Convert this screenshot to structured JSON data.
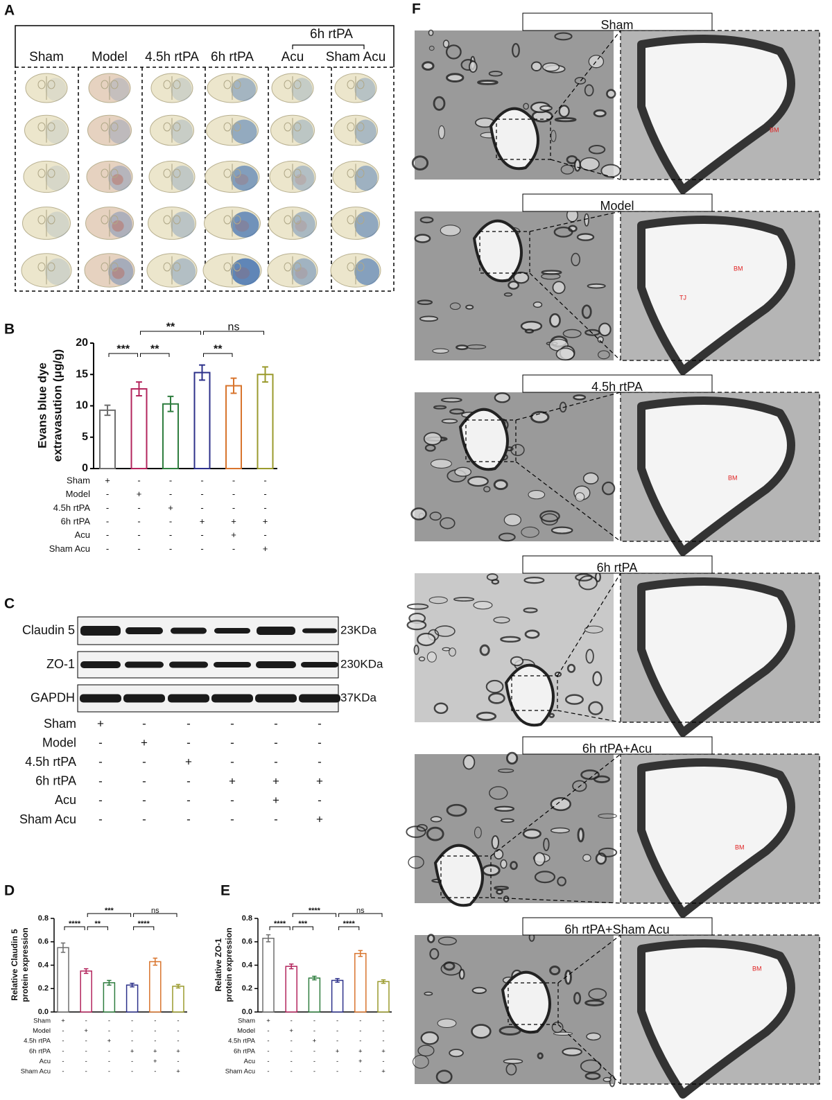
{
  "panel_letters": [
    "A",
    "B",
    "C",
    "D",
    "E",
    "F"
  ],
  "A": {
    "super_header": "6h rtPA",
    "headers": [
      "Sham",
      "Model",
      "4.5h rtPA",
      "6h rtPA",
      "Acu",
      "Sham Acu"
    ]
  },
  "chart_data": [
    {
      "type": "bar",
      "ylabel": [
        "Evans blue dye",
        "extravasution (μg/g)"
      ],
      "ylim": [
        0,
        20
      ],
      "yticks": [
        0,
        5,
        10,
        15,
        20
      ],
      "values": [
        9.3,
        12.7,
        10.3,
        15.3,
        13.2,
        15.0
      ],
      "errors": [
        0.8,
        1.1,
        1.2,
        1.2,
        1.2,
        1.2
      ],
      "colors": [
        "#6e6e6e",
        "#b3245c",
        "#2e7d3e",
        "#2c308a",
        "#d8742c",
        "#9a9a2c"
      ],
      "conditions": [
        {
          "label": "Sham",
          "signs": [
            "+",
            "-",
            "-",
            "-",
            "-",
            "-"
          ]
        },
        {
          "label": "Model",
          "signs": [
            "-",
            "+",
            "-",
            "-",
            "-",
            "-"
          ]
        },
        {
          "label": "4.5h rtPA",
          "signs": [
            "-",
            "-",
            "+",
            "-",
            "-",
            "-"
          ]
        },
        {
          "label": "6h rtPA",
          "signs": [
            "-",
            "-",
            "-",
            "+",
            "+",
            "+"
          ]
        },
        {
          "label": "Acu",
          "signs": [
            "-",
            "-",
            "-",
            "-",
            "+",
            "-"
          ]
        },
        {
          "label": "Sham Acu",
          "signs": [
            "-",
            "-",
            "-",
            "-",
            "-",
            "+"
          ]
        }
      ],
      "comparisons": [
        {
          "from": 0,
          "to": 1,
          "text": "***"
        },
        {
          "from": 1,
          "to": 2,
          "text": "**"
        },
        {
          "from": 1,
          "to": 3,
          "text": "**"
        },
        {
          "from": 3,
          "to": 4,
          "text": "**"
        },
        {
          "from": 3,
          "to": 5,
          "text": "ns"
        }
      ]
    },
    {
      "type": "bar",
      "ylabel": [
        "Relative Claudin 5",
        "protein expression"
      ],
      "ylim": [
        0,
        0.8
      ],
      "yticks": [
        {
          "value": 0,
          "label": "0.0"
        },
        0.2,
        0.4,
        0.6,
        0.8
      ],
      "values": [
        0.55,
        0.35,
        0.25,
        0.23,
        0.43,
        0.22
      ],
      "errors": [
        0.04,
        0.02,
        0.02,
        0.015,
        0.03,
        0.015
      ],
      "colors": [
        "#6e6e6e",
        "#b3245c",
        "#2e7d3e",
        "#2c308a",
        "#d8742c",
        "#9a9a2c"
      ],
      "conditions": [
        {
          "label": "Sham",
          "signs": [
            "+",
            "-",
            "-",
            "-",
            "-",
            "-"
          ]
        },
        {
          "label": "Model",
          "signs": [
            "-",
            "+",
            "-",
            "-",
            "-",
            "-"
          ]
        },
        {
          "label": "4.5h rtPA",
          "signs": [
            "-",
            "-",
            "+",
            "-",
            "-",
            "-"
          ]
        },
        {
          "label": "6h rtPA",
          "signs": [
            "-",
            "-",
            "-",
            "+",
            "+",
            "+"
          ]
        },
        {
          "label": "Acu",
          "signs": [
            "-",
            "-",
            "-",
            "-",
            "+",
            "-"
          ]
        },
        {
          "label": "Sham Acu",
          "signs": [
            "-",
            "-",
            "-",
            "-",
            "-",
            "+"
          ]
        }
      ],
      "comparisons": [
        {
          "from": 0,
          "to": 1,
          "text": "****"
        },
        {
          "from": 1,
          "to": 2,
          "text": "**"
        },
        {
          "from": 1,
          "to": 3,
          "text": "***"
        },
        {
          "from": 3,
          "to": 4,
          "text": "****"
        },
        {
          "from": 3,
          "to": 5,
          "text": "ns"
        }
      ]
    },
    {
      "type": "bar",
      "ylabel": [
        "Relative ZO-1",
        "protein expression"
      ],
      "ylim": [
        0,
        0.8
      ],
      "yticks": [
        {
          "value": 0,
          "label": "0.0"
        },
        0.2,
        0.4,
        0.6,
        0.8
      ],
      "values": [
        0.63,
        0.39,
        0.29,
        0.27,
        0.5,
        0.26
      ],
      "errors": [
        0.03,
        0.02,
        0.015,
        0.015,
        0.025,
        0.015
      ],
      "colors": [
        "#6e6e6e",
        "#b3245c",
        "#2e7d3e",
        "#2c308a",
        "#d8742c",
        "#9a9a2c"
      ],
      "conditions": [
        {
          "label": "Sham",
          "signs": [
            "+",
            "-",
            "-",
            "-",
            "-",
            "-"
          ]
        },
        {
          "label": "Model",
          "signs": [
            "-",
            "+",
            "-",
            "-",
            "-",
            "-"
          ]
        },
        {
          "label": "4.5h rtPA",
          "signs": [
            "-",
            "-",
            "+",
            "-",
            "-",
            "-"
          ]
        },
        {
          "label": "6h rtPA",
          "signs": [
            "-",
            "-",
            "-",
            "+",
            "+",
            "+"
          ]
        },
        {
          "label": "Acu",
          "signs": [
            "-",
            "-",
            "-",
            "-",
            "+",
            "-"
          ]
        },
        {
          "label": "Sham Acu",
          "signs": [
            "-",
            "-",
            "-",
            "-",
            "-",
            "+"
          ]
        }
      ],
      "comparisons": [
        {
          "from": 0,
          "to": 1,
          "text": "****"
        },
        {
          "from": 1,
          "to": 2,
          "text": "***"
        },
        {
          "from": 1,
          "to": 3,
          "text": "****"
        },
        {
          "from": 3,
          "to": 4,
          "text": "****"
        },
        {
          "from": 3,
          "to": 5,
          "text": "ns"
        }
      ]
    }
  ],
  "C": {
    "blots": [
      {
        "protein": "Claudin 5",
        "size": "23KDa"
      },
      {
        "protein": "ZO-1",
        "size": "230KDa"
      },
      {
        "protein": "GAPDH",
        "size": "37KDa"
      }
    ],
    "conditions": [
      {
        "label": "Sham",
        "signs": [
          "+",
          "-",
          "-",
          "-",
          "-",
          "-"
        ]
      },
      {
        "label": "Model",
        "signs": [
          "-",
          "+",
          "-",
          "-",
          "-",
          "-"
        ]
      },
      {
        "label": "4.5h rtPA",
        "signs": [
          "-",
          "-",
          "+",
          "-",
          "-",
          "-"
        ]
      },
      {
        "label": "6h rtPA",
        "signs": [
          "-",
          "-",
          "-",
          "+",
          "+",
          "+"
        ]
      },
      {
        "label": "Acu",
        "signs": [
          "-",
          "-",
          "-",
          "-",
          "+",
          "-"
        ]
      },
      {
        "label": "Sham Acu",
        "signs": [
          "-",
          "-",
          "-",
          "-",
          "-",
          "+"
        ]
      }
    ]
  },
  "F": {
    "panels": [
      {
        "title": "Sham",
        "marks": [
          "BM"
        ]
      },
      {
        "title": "Model",
        "marks": [
          "BM",
          "TJ"
        ]
      },
      {
        "title": "4.5h rtPA",
        "marks": [
          "BM"
        ]
      },
      {
        "title": "6h rtPA",
        "marks": []
      },
      {
        "title": "6h rtPA+Acu",
        "marks": [
          "BM"
        ]
      },
      {
        "title": "6h rtPA+Sham Acu",
        "marks": [
          "BM"
        ]
      }
    ]
  }
}
